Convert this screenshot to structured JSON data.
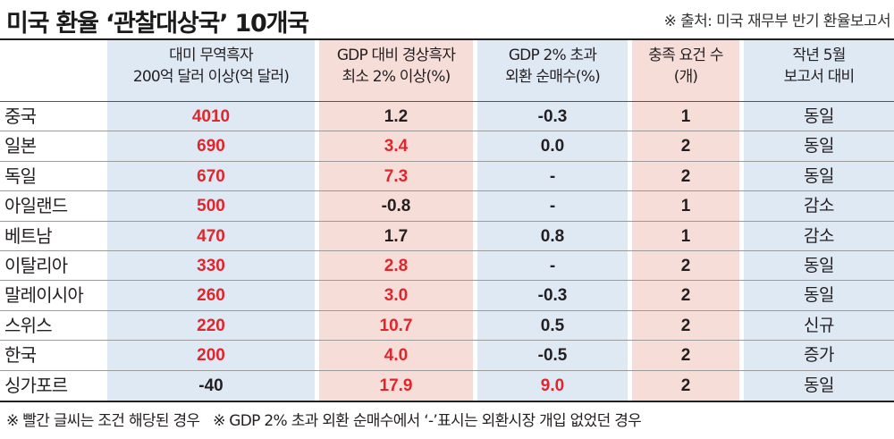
{
  "title": "미국 환율 ‘관찰대상국’ 10개국",
  "source": "※ 출처: 미국 재무부 반기 환율보고서",
  "colors": {
    "red": "#e0262d",
    "blue_bg": "#dfe9f4",
    "pink_bg": "#f6ddd8"
  },
  "headers": [
    {
      "line1": "대미 무역흑자",
      "line2": "200억 달러 이상(억 달러)"
    },
    {
      "line1": "GDP 대비 경상흑자",
      "line2": "최소 2% 이상(%)"
    },
    {
      "line1": "GDP 2% 초과",
      "line2": "외환 순매수(%)"
    },
    {
      "line1": "충족 요건 수",
      "line2": "(개)"
    },
    {
      "line1": "작년 5월",
      "line2": "보고서 대비"
    }
  ],
  "rows": [
    {
      "country": "중국",
      "trade": "4010",
      "trade_met": true,
      "account": "1.2",
      "account_met": false,
      "fx": "-0.3",
      "fx_met": false,
      "count": "1",
      "change": "동일"
    },
    {
      "country": "일본",
      "trade": "690",
      "trade_met": true,
      "account": "3.4",
      "account_met": true,
      "fx": "0.0",
      "fx_met": false,
      "count": "2",
      "change": "동일"
    },
    {
      "country": "독일",
      "trade": "670",
      "trade_met": true,
      "account": "7.3",
      "account_met": true,
      "fx": "-",
      "fx_met": false,
      "count": "2",
      "change": "동일"
    },
    {
      "country": "아일랜드",
      "trade": "500",
      "trade_met": true,
      "account": "-0.8",
      "account_met": false,
      "fx": "-",
      "fx_met": false,
      "count": "1",
      "change": "감소"
    },
    {
      "country": "베트남",
      "trade": "470",
      "trade_met": true,
      "account": "1.7",
      "account_met": false,
      "fx": "0.8",
      "fx_met": false,
      "count": "1",
      "change": "감소"
    },
    {
      "country": "이탈리아",
      "trade": "330",
      "trade_met": true,
      "account": "2.8",
      "account_met": true,
      "fx": "-",
      "fx_met": false,
      "count": "2",
      "change": "동일"
    },
    {
      "country": "말레이시아",
      "trade": "260",
      "trade_met": true,
      "account": "3.0",
      "account_met": true,
      "fx": "-0.3",
      "fx_met": false,
      "count": "2",
      "change": "동일"
    },
    {
      "country": "스위스",
      "trade": "220",
      "trade_met": true,
      "account": "10.7",
      "account_met": true,
      "fx": "0.5",
      "fx_met": false,
      "count": "2",
      "change": "신규"
    },
    {
      "country": "한국",
      "trade": "200",
      "trade_met": true,
      "account": "4.0",
      "account_met": true,
      "fx": "-0.5",
      "fx_met": false,
      "count": "2",
      "change": "증가"
    },
    {
      "country": "싱가포르",
      "trade": "-40",
      "trade_met": false,
      "account": "17.9",
      "account_met": true,
      "fx": "9.0",
      "fx_met": true,
      "count": "2",
      "change": "동일"
    }
  ],
  "footnotes": [
    "※ 빨간 글씨는 조건 해당된 경우",
    "※ GDP 2% 초과 외환 순매수에서 ‘-’표시는 외환시장 개입 없었던 경우"
  ]
}
